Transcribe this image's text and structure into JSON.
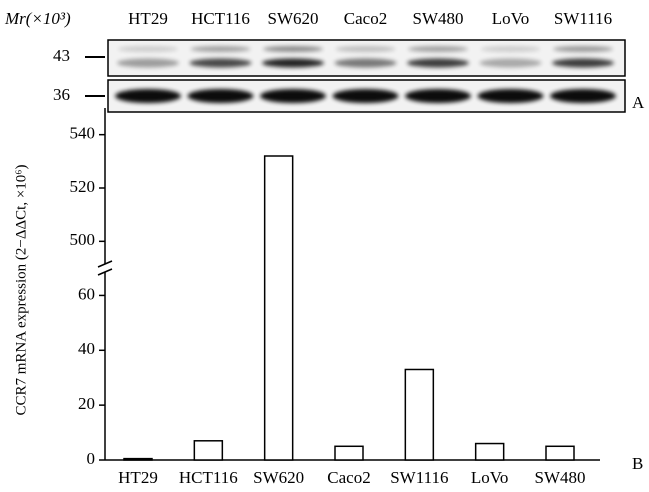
{
  "chart_data": [
    {
      "type": "blot",
      "y_label": "Mr(×10³)",
      "markers": [
        43,
        36
      ],
      "lanes": [
        "HT29",
        "HCT116",
        "SW620",
        "Caco2",
        "SW480",
        "LoVo",
        "SW1116"
      ],
      "panel": "A"
    },
    {
      "type": "bar",
      "panel": "B",
      "y_label": "CCR7 mRNA expression (2−ΔΔCt, ×10⁶)",
      "categories": [
        "HT29",
        "HCT116",
        "SW620",
        "Caco2",
        "SW1116",
        "LoVo",
        "SW480"
      ],
      "values": [
        0.5,
        7,
        532,
        5,
        33,
        6,
        5
      ],
      "color": "#ffffff",
      "ylim": [
        0,
        70
      ],
      "yticks": [
        0,
        20,
        40,
        60
      ],
      "ylim_upper": [
        490,
        550
      ],
      "yticks_upper": [
        500,
        520,
        540
      ],
      "axis_break": true
    }
  ]
}
